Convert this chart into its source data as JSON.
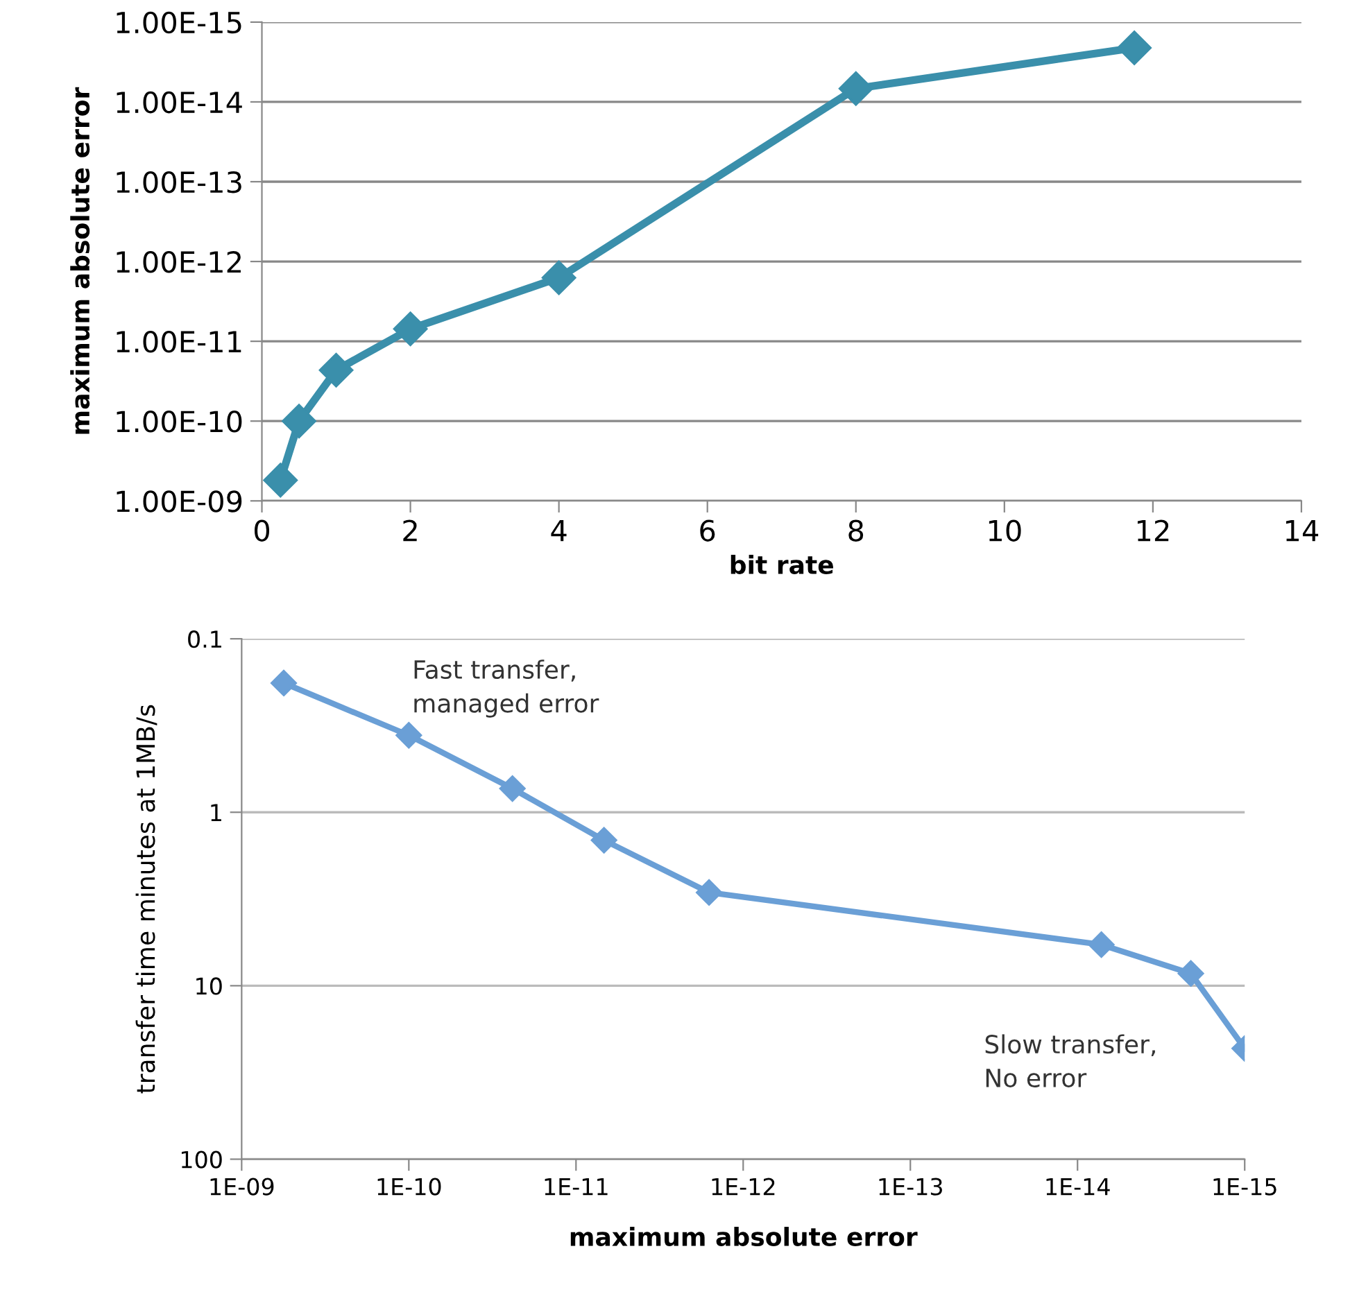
{
  "chart_data": [
    {
      "type": "line",
      "xlabel": "bit rate",
      "ylabel": "maximum absolute error",
      "x": [
        0.25,
        0.5,
        1,
        2,
        4,
        8,
        11.75
      ],
      "series": [
        {
          "color": "#3a8fab",
          "values": [
            5.5e-10,
            1e-10,
            2.3e-11,
            7e-12,
            1.6e-12,
            6.8e-15,
            2.1e-15
          ]
        }
      ],
      "xlim": [
        0,
        14
      ],
      "xticks": [
        0,
        2,
        4,
        6,
        8,
        10,
        12,
        14
      ],
      "ylim": [
        1e-09,
        1e-15
      ],
      "yticks": [
        {
          "value": 1e-09,
          "label": "1.00E-09"
        },
        {
          "value": 1e-10,
          "label": "1.00E-10"
        },
        {
          "value": 1e-11,
          "label": "1.00E-11"
        },
        {
          "value": 1e-12,
          "label": "1.00E-12"
        },
        {
          "value": 1e-13,
          "label": "1.00E-13"
        },
        {
          "value": 1e-14,
          "label": "1.00E-14"
        },
        {
          "value": 1e-15,
          "label": "1.00E-15"
        }
      ],
      "log": "y",
      "grid": "y",
      "marker": "diamond",
      "line_style": "solid",
      "legend": false
    },
    {
      "type": "line",
      "xlabel": "maximum absolute error",
      "ylabel": "transfer time minutes at 1MB/s",
      "x": [
        5.6e-10,
        1e-10,
        2.4e-11,
        6.8e-12,
        1.6e-12,
        7.2e-15,
        2.1e-15,
        1e-15
      ],
      "series": [
        {
          "color": "#6a9fd6",
          "values": [
            0.18,
            0.36,
            0.73,
            1.45,
            2.9,
            5.8,
            8.5,
            23
          ]
        }
      ],
      "xlim": [
        1e-09,
        1e-15
      ],
      "xticks": [
        {
          "value": 1e-09,
          "label": "1E-09"
        },
        {
          "value": 1e-10,
          "label": "1E-10"
        },
        {
          "value": 1e-11,
          "label": "1E-11"
        },
        {
          "value": 1e-12,
          "label": "1E-12"
        },
        {
          "value": 1e-13,
          "label": "1E-13"
        },
        {
          "value": 1e-14,
          "label": "1E-14"
        },
        {
          "value": 1e-15,
          "label": "1E-15"
        }
      ],
      "ylim": [
        100,
        0.1
      ],
      "yticks": [
        0.1,
        1,
        10,
        100
      ],
      "annotations": [
        "Fast transfer,\nmanaged error",
        "Slow transfer,\nNo error"
      ],
      "log": "xy",
      "grid": "y",
      "marker": "diamond",
      "line_style": "solid",
      "legend": false
    }
  ]
}
